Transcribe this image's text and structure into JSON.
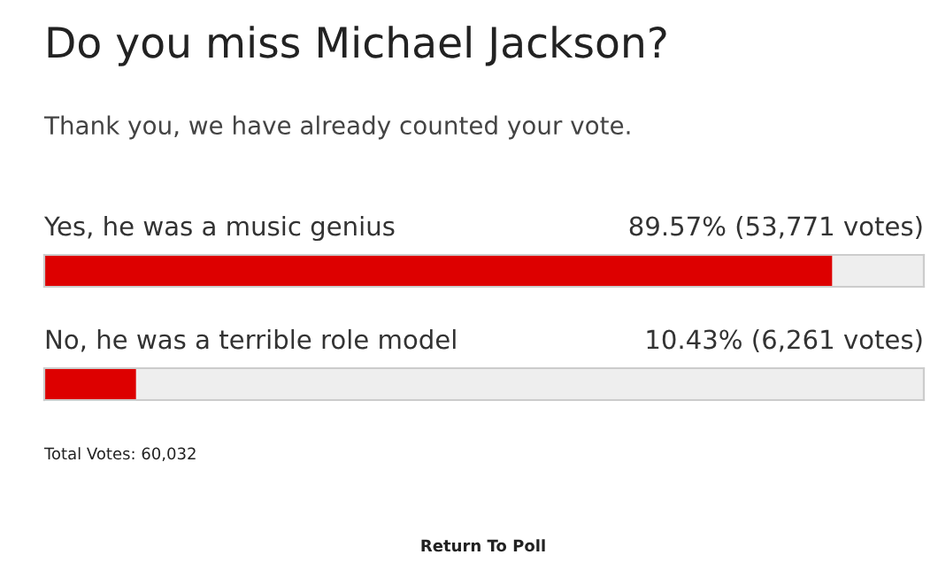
{
  "chart_data": {
    "type": "bar",
    "orientation": "horizontal",
    "title": "Do you miss Michael Jackson?",
    "subtitle": "Thank you, we have already counted your vote.",
    "categories": [
      "Yes, he was a music genius",
      "No, he was a terrible role model"
    ],
    "values": [
      89.57,
      10.43
    ],
    "color": "#dd0000",
    "value_labels": [
      "89.57% (53,771 votes)",
      "10.43% (6,261 votes)"
    ],
    "annotations": [
      "Total Votes: 60,032",
      "Return To Poll"
    ]
  }
}
